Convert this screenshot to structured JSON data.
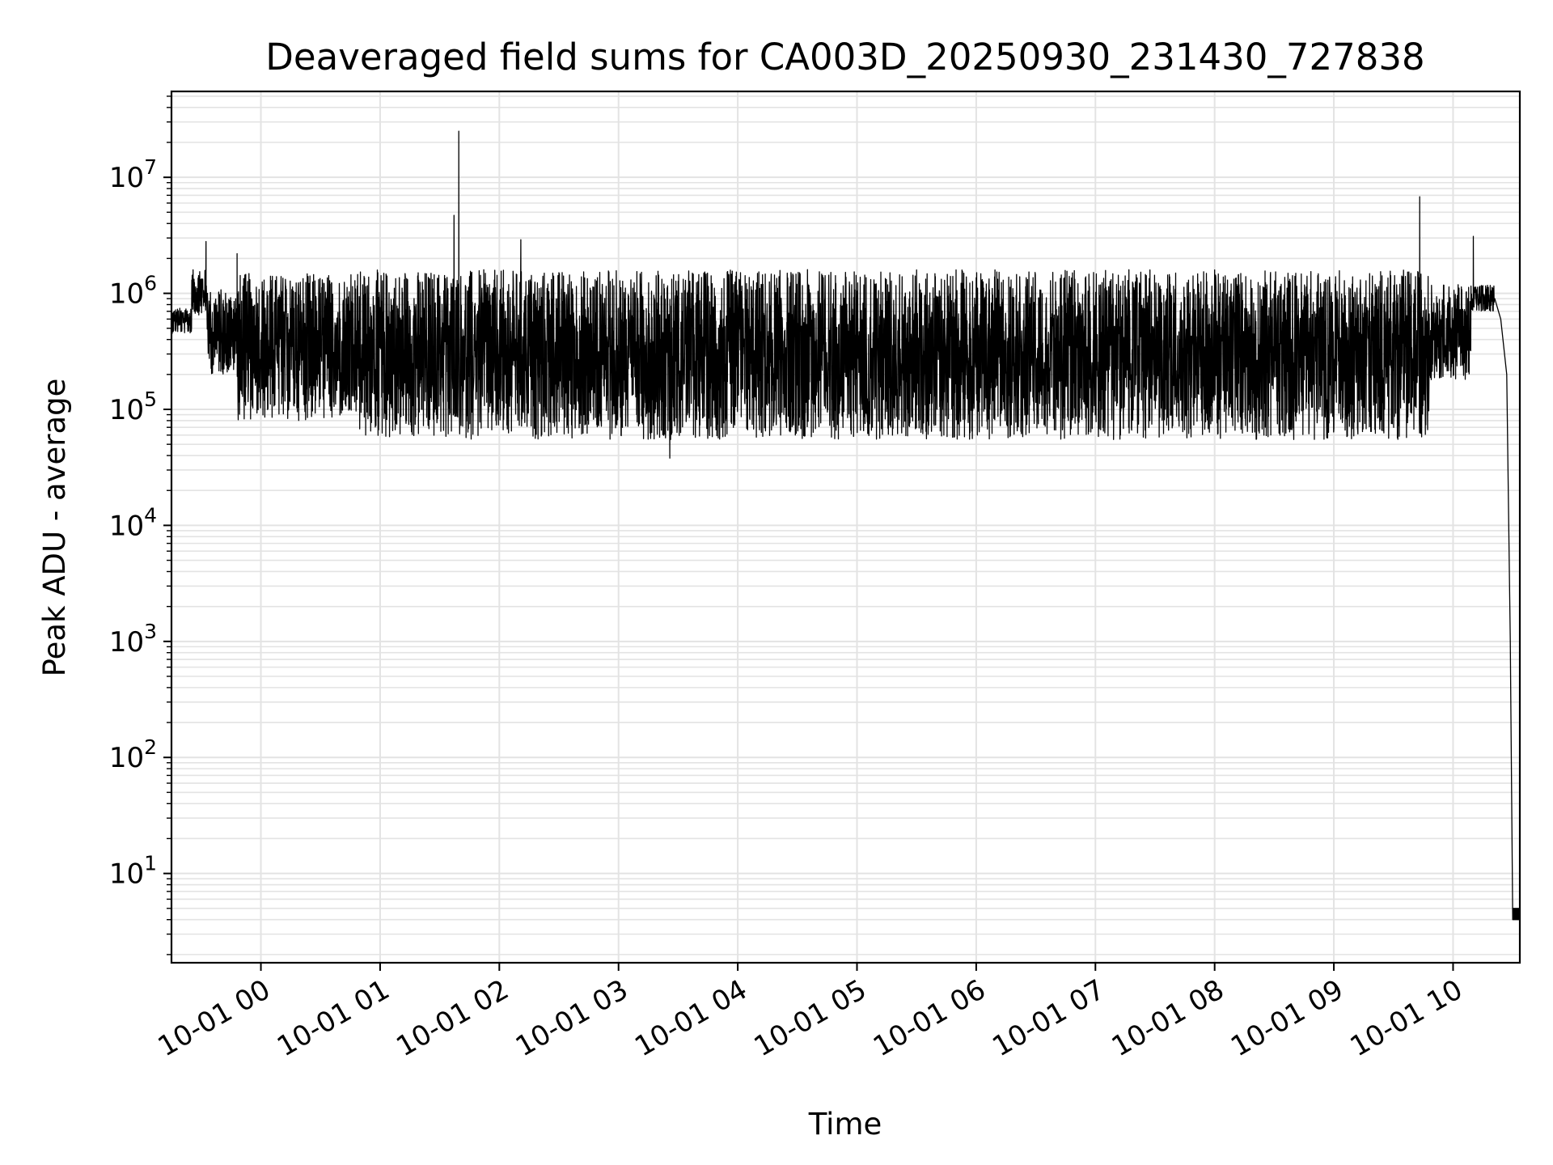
{
  "chart_data": {
    "type": "line",
    "title": "Deaveraged field sums for CA003D_20250930_231430_727838",
    "xlabel": "Time",
    "ylabel": "Peak ADU - average",
    "yscale": "log",
    "ylim": [
      1.7,
      55000000
    ],
    "xlim_hours_from_midnight": [
      -0.75,
      10.56
    ],
    "grid": true,
    "x_ticks": [
      {
        "label": "10-01 00",
        "hour": 0
      },
      {
        "label": "10-01 01",
        "hour": 1
      },
      {
        "label": "10-01 02",
        "hour": 2
      },
      {
        "label": "10-01 03",
        "hour": 3
      },
      {
        "label": "10-01 04",
        "hour": 4
      },
      {
        "label": "10-01 05",
        "hour": 5
      },
      {
        "label": "10-01 06",
        "hour": 6
      },
      {
        "label": "10-01 07",
        "hour": 7
      },
      {
        "label": "10-01 08",
        "hour": 8
      },
      {
        "label": "10-01 09",
        "hour": 9
      },
      {
        "label": "10-01 10",
        "hour": 10
      }
    ],
    "y_ticks": [
      {
        "base": "10",
        "exp": "1",
        "value": 10
      },
      {
        "base": "10",
        "exp": "2",
        "value": 100
      },
      {
        "base": "10",
        "exp": "3",
        "value": 1000
      },
      {
        "base": "10",
        "exp": "4",
        "value": 10000
      },
      {
        "base": "10",
        "exp": "5",
        "value": 100000
      },
      {
        "base": "10",
        "exp": "6",
        "value": 1000000
      },
      {
        "base": "10",
        "exp": "7",
        "value": 10000000
      }
    ],
    "series": [
      {
        "name": "field sums",
        "color": "#000000",
        "note": "dense noisy series; envelope values",
        "segments": [
          {
            "t_start": -0.75,
            "t_end": -0.58,
            "low": 450000,
            "high": 750000
          },
          {
            "t_start": -0.58,
            "t_end": -0.45,
            "low": 650000,
            "high": 1600000
          },
          {
            "t_start": -0.45,
            "t_end": -0.2,
            "low": 200000,
            "high": 1100000
          },
          {
            "t_start": -0.2,
            "t_end": 0.8,
            "low": 80000,
            "high": 1500000
          },
          {
            "t_start": 0.8,
            "t_end": 9.8,
            "low": 55000,
            "high": 1600000
          },
          {
            "t_start": 9.8,
            "t_end": 10.15,
            "low": 180000,
            "high": 1200000
          },
          {
            "t_start": 10.15,
            "t_end": 10.35,
            "low": 700000,
            "high": 1200000
          }
        ],
        "drop": [
          {
            "t": 10.35,
            "value": 900000
          },
          {
            "t": 10.4,
            "value": 600000
          },
          {
            "t": 10.45,
            "value": 200000
          },
          {
            "t": 10.48,
            "value": 1000
          },
          {
            "t": 10.5,
            "value": 4
          }
        ],
        "tail": {
          "t_start": 10.5,
          "t_end": 10.56,
          "value": 4
        },
        "spikes": [
          {
            "t": -0.46,
            "value": 2800000
          },
          {
            "t": -0.2,
            "value": 2200000
          },
          {
            "t": 1.62,
            "value": 4700000
          },
          {
            "t": 1.66,
            "value": 25000000
          },
          {
            "t": 2.18,
            "value": 2900000
          },
          {
            "t": 3.43,
            "value": 38000
          },
          {
            "t": 9.72,
            "value": 6800000
          },
          {
            "t": 10.17,
            "value": 3100000
          }
        ]
      }
    ]
  }
}
